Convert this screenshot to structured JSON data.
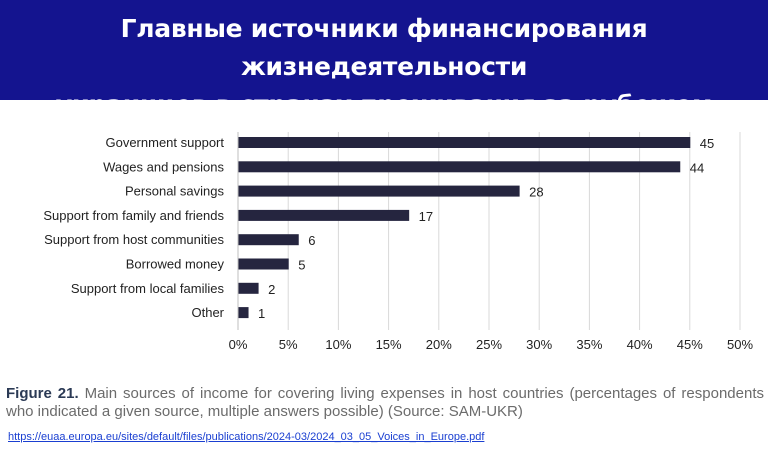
{
  "header": {
    "title_line1": "Главные источники финансирования жизнедеятельности",
    "title_line2": "украинцев в странах проживания за рубежом"
  },
  "colors": {
    "banner": "#14148f",
    "bar": "#25253f",
    "grid": "#d9d9d9",
    "text": "#222222"
  },
  "chart_data": {
    "type": "bar",
    "orientation": "horizontal",
    "categories": [
      "Government support",
      "Wages and pensions",
      "Personal savings",
      "Support from family and friends",
      "Support from host communities",
      "Borrowed money",
      "Support from local families",
      "Other"
    ],
    "values": [
      45,
      44,
      28,
      17,
      6,
      5,
      2,
      1
    ],
    "xlim": [
      0,
      50
    ],
    "xticks": [
      "0%",
      "5%",
      "10%",
      "15%",
      "20%",
      "25%",
      "30%",
      "35%",
      "40%",
      "45%",
      "50%"
    ],
    "grid": true,
    "xlabel": "",
    "ylabel": ""
  },
  "caption": {
    "figure_label": "Figure 21.",
    "text": "Main sources of income for covering living expenses in host countries (percentages of respondents who indicated a given source, multiple answers possible) (Source: SAM-UKR)"
  },
  "source_link": "https://euaa.europa.eu/sites/default/files/publications/2024-03/2024_03_05_Voices_in_Europe.pdf"
}
